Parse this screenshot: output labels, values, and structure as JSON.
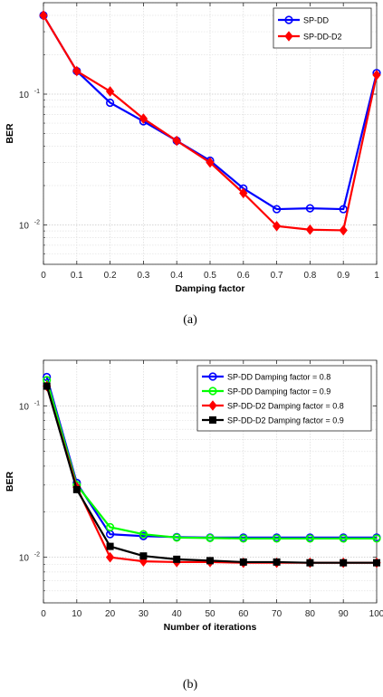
{
  "chart_data": [
    {
      "type": "line",
      "caption": "(a)",
      "xlabel": "Damping factor",
      "ylabel": "BER",
      "x_ticks": [
        "0",
        "0.1",
        "0.2",
        "0.3",
        "0.4",
        "0.5",
        "0.6",
        "0.7",
        "0.8",
        "0.9",
        "1"
      ],
      "y_tick_labels": [
        {
          "base": "10",
          "exp": "-2",
          "value": 0.01
        },
        {
          "base": "10",
          "exp": "-1",
          "value": 0.1
        }
      ],
      "xlim": [
        0,
        1
      ],
      "ylim": [
        0.005,
        0.5
      ],
      "yscale": "log",
      "grid": true,
      "legend_position": "top-right",
      "x": [
        0,
        0.1,
        0.2,
        0.3,
        0.4,
        0.5,
        0.6,
        0.7,
        0.8,
        0.9,
        1
      ],
      "series": [
        {
          "name": "SP-DD",
          "color": "#0000ff",
          "marker": "circle",
          "values": [
            0.4,
            0.15,
            0.086,
            0.062,
            0.044,
            0.031,
            0.019,
            0.0132,
            0.0134,
            0.0132,
            0.145
          ]
        },
        {
          "name": "SP-DD-D2",
          "color": "#ff0000",
          "marker": "diamond",
          "values": [
            0.4,
            0.15,
            0.105,
            0.065,
            0.044,
            0.03,
            0.0175,
            0.0098,
            0.0092,
            0.0091,
            0.14
          ]
        }
      ]
    },
    {
      "type": "line",
      "caption": "(b)",
      "xlabel": "Number of iterations",
      "ylabel": "BER",
      "x_ticks": [
        "0",
        "10",
        "20",
        "30",
        "40",
        "50",
        "60",
        "70",
        "80",
        "90",
        "100"
      ],
      "y_tick_labels": [
        {
          "base": "10",
          "exp": "-2",
          "value": 0.01
        },
        {
          "base": "10",
          "exp": "-1",
          "value": 0.1
        }
      ],
      "xlim": [
        0,
        100
      ],
      "ylim": [
        0.005,
        0.2
      ],
      "yscale": "log",
      "grid": true,
      "legend_position": "top-right",
      "x": [
        1,
        10,
        20,
        30,
        40,
        50,
        60,
        70,
        80,
        90,
        100
      ],
      "series": [
        {
          "name": "SP-DD Damping factor = 0.8",
          "color": "#0000ff",
          "marker": "circle",
          "values": [
            0.155,
            0.031,
            0.0142,
            0.0138,
            0.0136,
            0.0135,
            0.0135,
            0.0135,
            0.0135,
            0.0135,
            0.0135
          ]
        },
        {
          "name": "SP-DD Damping factor = 0.9",
          "color": "#00ff00",
          "marker": "circle",
          "values": [
            0.148,
            0.03,
            0.0158,
            0.0142,
            0.0135,
            0.0134,
            0.0133,
            0.0133,
            0.0133,
            0.0133,
            0.0133
          ]
        },
        {
          "name": "SP-DD-D2 Damping factor = 0.8",
          "color": "#ff0000",
          "marker": "diamond",
          "values": [
            0.135,
            0.029,
            0.01,
            0.0094,
            0.0093,
            0.0093,
            0.0092,
            0.0092,
            0.0092,
            0.0092,
            0.0092
          ]
        },
        {
          "name": "SP-DD-D2 Damping factor = 0.9",
          "color": "#000000",
          "marker": "square",
          "values": [
            0.135,
            0.028,
            0.0118,
            0.0102,
            0.0097,
            0.0095,
            0.0093,
            0.0093,
            0.0092,
            0.0092,
            0.0092
          ]
        }
      ]
    }
  ]
}
